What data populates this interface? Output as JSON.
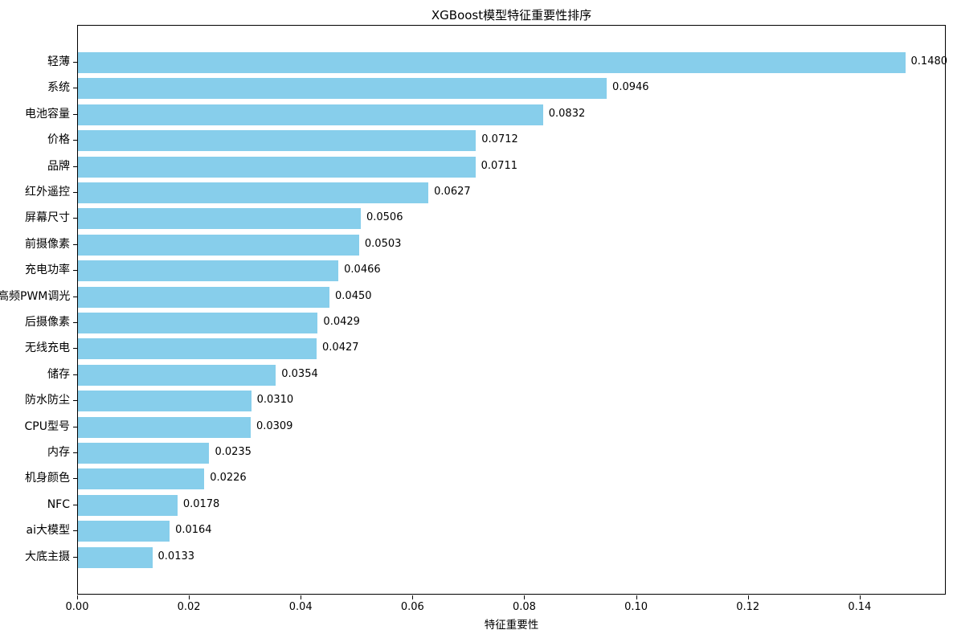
{
  "title": "XGBoost模型特征重要性排序",
  "chart_data": {
    "type": "bar",
    "orientation": "horizontal",
    "title": "XGBoost模型特征重要性排序",
    "xlabel": "特征重要性",
    "ylabel": "",
    "categories": [
      "轻薄",
      "系统",
      "电池容量",
      "价格",
      "品牌",
      "红外遥控",
      "屏幕尺寸",
      "前摄像素",
      "充电功率",
      "高频PWM调光",
      "后摄像素",
      "无线充电",
      "储存",
      "防水防尘",
      "CPU型号",
      "内存",
      "机身颜色",
      "NFC",
      "ai大模型",
      "大底主摄"
    ],
    "values": [
      0.148,
      0.0946,
      0.0832,
      0.0712,
      0.0711,
      0.0627,
      0.0506,
      0.0503,
      0.0466,
      0.045,
      0.0429,
      0.0427,
      0.0354,
      0.031,
      0.0309,
      0.0235,
      0.0226,
      0.0178,
      0.0164,
      0.0133
    ],
    "value_labels": [
      "0.1480",
      "0.0946",
      "0.0832",
      "0.0712",
      "0.0711",
      "0.0627",
      "0.0506",
      "0.0503",
      "0.0466",
      "0.0450",
      "0.0429",
      "0.0427",
      "0.0354",
      "0.0310",
      "0.0309",
      "0.0235",
      "0.0226",
      "0.0178",
      "0.0164",
      "0.0133"
    ],
    "x_ticks": [
      "0.00",
      "0.02",
      "0.04",
      "0.06",
      "0.08",
      "0.10",
      "0.12",
      "0.14"
    ],
    "x_tick_values": [
      0.0,
      0.02,
      0.04,
      0.06,
      0.08,
      0.1,
      0.12,
      0.14
    ],
    "xlim": [
      0,
      0.1554
    ],
    "bar_color": "#87CEEB",
    "frame_color": "#000000",
    "background": "#FFFFFF",
    "grid": false,
    "legend": "none"
  }
}
